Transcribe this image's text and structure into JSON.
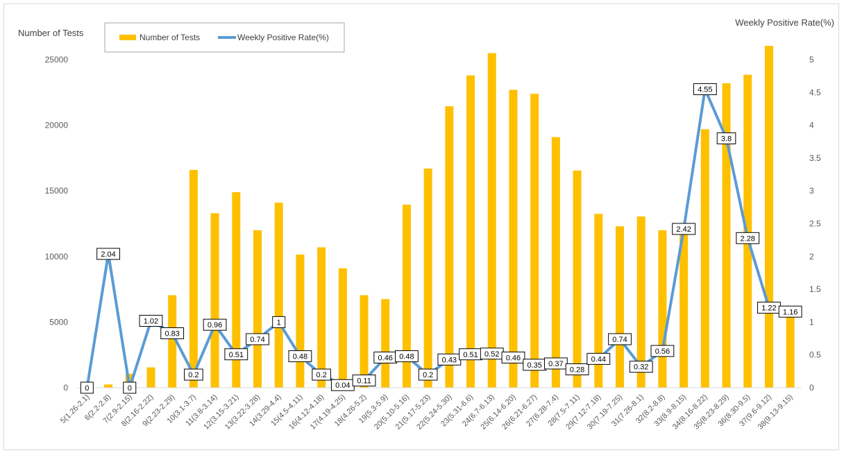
{
  "chart_data": {
    "type": "bar",
    "categories": [
      "5(1.26-2.1)",
      "6(2.2-2.8)",
      "7(2.9-2.15)",
      "8(2.16-2.22)",
      "9(2.23-2.29)",
      "10(3.1-3.7)",
      "11(3.8-3.14)",
      "12(3.15-3.21)",
      "13(3.22-3.28)",
      "14(3.29-4.4)",
      "15(4.5-4.11)",
      "16(4.12-4.18)",
      "17(4.19-4.25)",
      "18(4.26-5.2)",
      "19(5.3-5.9)",
      "20(5.10-5.16)",
      "21(5.17-5.23)",
      "22(5.24-5.30)",
      "23(5.31-6.6)",
      "24(6.7-6.13)",
      "25(6.14-6.20)",
      "26(6.21-6.27)",
      "27(6.28-7.4)",
      "28(7.5-7.11)",
      "29(7.12-7.18)",
      "30(7.19-7.25)",
      "31(7.26-8.1)",
      "32(8.2-8.8)",
      "33(8.9-8.15)",
      "34(8.16-8.22)",
      "35(8.23-8.29)",
      "36(8.30-9.5)",
      "37(9.6-9.12)",
      "38(9.13-9.15)"
    ],
    "series": [
      {
        "name": "Number of Tests",
        "type": "bar",
        "axis": "left",
        "color": "#FFC000",
        "values": [
          50,
          250,
          1050,
          1550,
          7050,
          16600,
          13300,
          14900,
          12000,
          14100,
          10150,
          10700,
          9100,
          7050,
          6750,
          13950,
          16700,
          21450,
          23800,
          25500,
          22700,
          22400,
          19100,
          16550,
          13250,
          12300,
          13050,
          12000,
          11900,
          19700,
          23200,
          23850,
          26050,
          5800
        ]
      },
      {
        "name": "Weekly Positive Rate(%)",
        "type": "line",
        "axis": "right",
        "color": "#5B9BD5",
        "values": [
          0,
          2.04,
          0,
          1.02,
          0.83,
          0.2,
          0.96,
          0.51,
          0.74,
          1,
          0.48,
          0.2,
          0.04,
          0.11,
          0.46,
          0.48,
          0.2,
          0.43,
          0.51,
          0.52,
          0.46,
          0.35,
          0.37,
          0.28,
          0.44,
          0.74,
          0.32,
          0.56,
          2.42,
          4.55,
          3.8,
          2.28,
          1.22,
          1.16
        ],
        "labels": [
          "0",
          "2.04",
          "0",
          "1.02",
          "0.83",
          "0.2",
          "0.96",
          "0.51",
          "0.74",
          "1",
          "0.48",
          "0.2",
          "0.04",
          "0.11",
          "0.46",
          "0.48",
          "0.2",
          "0.43",
          "0.51",
          "0.52",
          "0.46",
          "0.35",
          "0.37",
          "0.28",
          "0.44",
          "0.74",
          "0.32",
          "0.56",
          "2.42",
          "4.55",
          "3.8",
          "2.28",
          "1.22",
          "1.16"
        ]
      }
    ],
    "ylabel": "Number of Tests",
    "y2label": "Weekly Positive Rate(%)",
    "ylim": [
      0,
      25000
    ],
    "y2lim": [
      0,
      5
    ],
    "yticks": [
      "0",
      "5000",
      "10000",
      "15000",
      "20000",
      "25000"
    ],
    "y2ticks": [
      "0",
      "0.5",
      "1",
      "1.5",
      "2",
      "2.5",
      "3",
      "3.5",
      "4",
      "4.5",
      "5"
    ],
    "grid": false,
    "legend_position": "top-left"
  }
}
